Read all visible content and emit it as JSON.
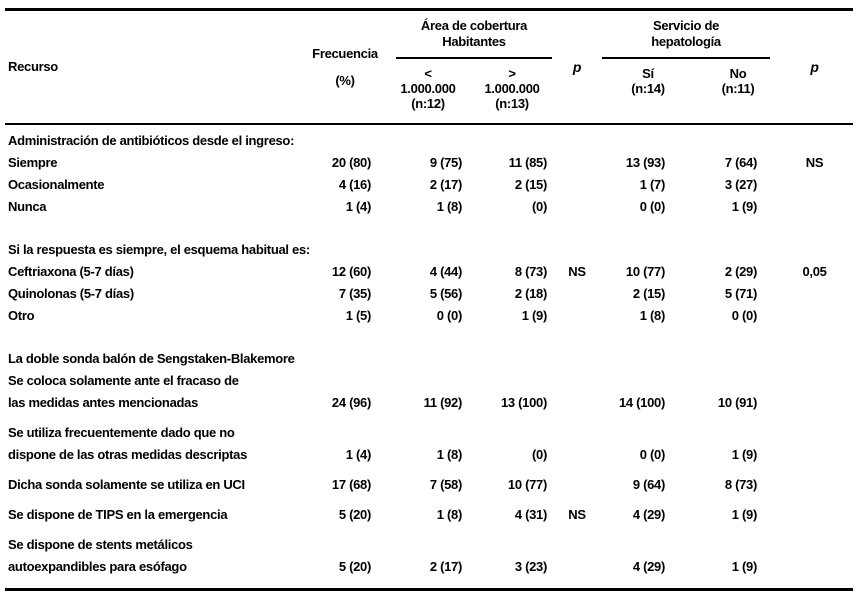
{
  "colors": {
    "text": "#000000",
    "rules": "#000000",
    "background": "#ffffff"
  },
  "header": {
    "recurso": "Recurso",
    "frecuencia_lines": [
      "Frecuencia",
      "(%)"
    ],
    "area_group_lines": [
      "Área de cobertura",
      "Habitantes"
    ],
    "area_sub": [
      [
        "<",
        "1.000.000",
        "(n:12)"
      ],
      [
        ">",
        "1.000.000",
        "(n:13)"
      ]
    ],
    "p_area": "p",
    "servicio_group_lines": [
      "Servicio de",
      "hepatología"
    ],
    "servicio_sub": [
      [
        "Sí",
        "(n:14)"
      ],
      [
        "No",
        "(n:11)"
      ]
    ],
    "p_servicio": "p"
  },
  "rows": [
    {
      "kind": "section",
      "gap": "",
      "label": [
        "Administración de antibióticos desde el ingreso:"
      ],
      "values": []
    },
    {
      "kind": "data",
      "gap": "",
      "label": [
        "Siempre"
      ],
      "values": [
        "20 (80)",
        "9 (75)",
        "11 (85)",
        "",
        "13 (93)",
        "7 (64)",
        "NS"
      ]
    },
    {
      "kind": "data",
      "gap": "",
      "label": [
        "Ocasionalmente"
      ],
      "values": [
        "4 (16)",
        "2 (17)",
        "2 (15)",
        "",
        "1 (7)",
        "3 (27)",
        ""
      ]
    },
    {
      "kind": "data",
      "gap": "",
      "label": [
        "Nunca"
      ],
      "values": [
        "1 (4)",
        "1 (8)",
        "(0)",
        "",
        "0 (0)",
        "1 (9)",
        ""
      ]
    },
    {
      "kind": "section",
      "gap": "lg",
      "label": [
        "Si la respuesta es siempre, el esquema habitual es:"
      ],
      "values": []
    },
    {
      "kind": "data",
      "gap": "",
      "label": [
        "Ceftriaxona (5-7 días)"
      ],
      "values": [
        "12 (60)",
        "4 (44)",
        "8 (73)",
        "NS",
        "10 (77)",
        "2 (29)",
        "0,05"
      ]
    },
    {
      "kind": "data",
      "gap": "",
      "label": [
        "Quinolonas (5-7 días)"
      ],
      "values": [
        "7 (35)",
        "5 (56)",
        "2 (18)",
        "",
        "2 (15)",
        "5 (71)",
        ""
      ]
    },
    {
      "kind": "data",
      "gap": "",
      "label": [
        "Otro"
      ],
      "values": [
        "1 (5)",
        "0 (0)",
        "1 (9)",
        "",
        "1 (8)",
        "0 (0)",
        ""
      ]
    },
    {
      "kind": "section",
      "gap": "lg",
      "label": [
        "La doble sonda balón de Sengstaken-Blakemore"
      ],
      "values": []
    },
    {
      "kind": "data",
      "gap": "",
      "label": [
        "Se coloca solamente ante el fracaso de",
        "las medidas antes mencionadas"
      ],
      "values": [
        "24 (96)",
        "11 (92)",
        "13 (100)",
        "",
        "14 (100)",
        "10 (91)",
        ""
      ]
    },
    {
      "kind": "data",
      "gap": "sm",
      "label": [
        "Se utiliza frecuentemente dado que no",
        "dispone de las otras medidas descriptas"
      ],
      "values": [
        "1 (4)",
        "1 (8)",
        "(0)",
        "",
        "0 (0)",
        "1 (9)",
        ""
      ]
    },
    {
      "kind": "data",
      "gap": "sm",
      "label": [
        "Dicha sonda solamente se utiliza en UCI"
      ],
      "values": [
        "17 (68)",
        "7 (58)",
        "10 (77)",
        "",
        "9 (64)",
        "8 (73)",
        ""
      ]
    },
    {
      "kind": "data",
      "gap": "sm",
      "label": [
        "Se dispone de TIPS en la emergencia"
      ],
      "values": [
        "5 (20)",
        "1 (8)",
        "4 (31)",
        "NS",
        "4 (29)",
        "1 (9)",
        ""
      ]
    },
    {
      "kind": "data",
      "gap": "sm",
      "label": [
        "Se dispone de stents metálicos",
        "autoexpandibles para esófago"
      ],
      "values": [
        "5 (20)",
        "2 (17)",
        "3 (23)",
        "",
        "4 (29)",
        "1 (9)",
        ""
      ]
    }
  ]
}
